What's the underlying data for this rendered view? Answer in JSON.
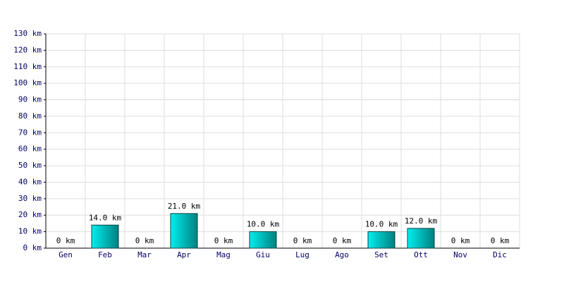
{
  "chart_data": {
    "type": "bar",
    "categories": [
      "Gen",
      "Feb",
      "Mar",
      "Apr",
      "Mag",
      "Giu",
      "Lug",
      "Ago",
      "Set",
      "Ott",
      "Nov",
      "Dic"
    ],
    "values": [
      0,
      14,
      0,
      21,
      0,
      10,
      0,
      0,
      10,
      12,
      0,
      0
    ],
    "value_labels": [
      "0 km",
      "14.0 km",
      "0 km",
      "21.0 km",
      "0 km",
      "10.0 km",
      "0 km",
      "0 km",
      "10.0 km",
      "12.0 km",
      "0 km",
      "0 km"
    ],
    "color": "#00cccc",
    "ylim": [
      0,
      130
    ],
    "yticks": [
      {
        "value": 0,
        "label": "0 km"
      },
      {
        "value": 10,
        "label": "10 km"
      },
      {
        "value": 20,
        "label": "20 km"
      },
      {
        "value": 30,
        "label": "30 km"
      },
      {
        "value": 40,
        "label": "40 km"
      },
      {
        "value": 50,
        "label": "50 km"
      },
      {
        "value": 60,
        "label": "60 km"
      },
      {
        "value": 70,
        "label": "70 km"
      },
      {
        "value": 80,
        "label": "80 km"
      },
      {
        "value": 90,
        "label": "90 km"
      },
      {
        "value": 100,
        "label": "100 km"
      },
      {
        "value": 110,
        "label": "110 km"
      },
      {
        "value": 120,
        "label": "120 km"
      },
      {
        "value": 130,
        "label": "130 km"
      }
    ],
    "grid": true
  }
}
